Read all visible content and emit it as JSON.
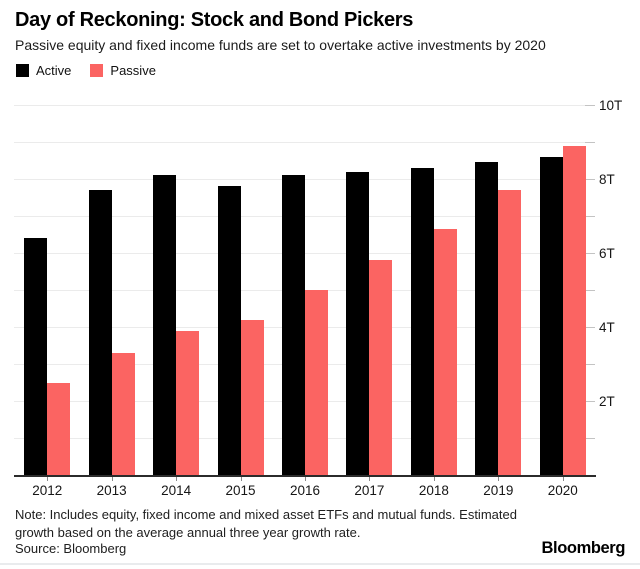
{
  "header": {
    "title": "Day of Reckoning: Stock and Bond Pickers",
    "subtitle": "Passive equity and fixed income funds are set to overtake active investments by 2020"
  },
  "chart_data": {
    "type": "bar",
    "title": "Day of Reckoning: Stock and Bond Pickers",
    "subtitle": "Passive equity and fixed income funds are set to overtake active investments by 2020",
    "categories": [
      "2012",
      "2013",
      "2014",
      "2015",
      "2016",
      "2017",
      "2018",
      "2019",
      "2020"
    ],
    "series": [
      {
        "name": "Active",
        "color": "#000000",
        "values": [
          6.4,
          7.7,
          8.1,
          7.8,
          8.1,
          8.2,
          8.3,
          8.45,
          8.6
        ]
      },
      {
        "name": "Passive",
        "color": "#fb6462",
        "values": [
          2.5,
          3.3,
          3.9,
          4.2,
          5.0,
          5.8,
          6.65,
          7.7,
          8.9
        ]
      }
    ],
    "unit": "T",
    "ylim": [
      0,
      10
    ],
    "gridline_step": 1,
    "ytick_label_values": [
      2,
      4,
      6,
      8,
      10
    ],
    "ytick_labels": [
      "2T",
      "4T",
      "6T",
      "8T",
      "10T"
    ],
    "grid": true,
    "legend_position": "top-left",
    "ylabel": "",
    "xlabel": ""
  },
  "note": {
    "text": "Note: Includes equity, fixed income and mixed asset ETFs and mutual funds. Estimated growth based on the average annual three year growth rate.",
    "source": "Source: Bloomberg"
  },
  "brand": "Bloomberg",
  "colors": {
    "active": "#000000",
    "passive": "#fb6462",
    "grid": "#ebebeb",
    "axis": "#2b2b2b",
    "text": "#161616",
    "background": "#ffffff"
  }
}
